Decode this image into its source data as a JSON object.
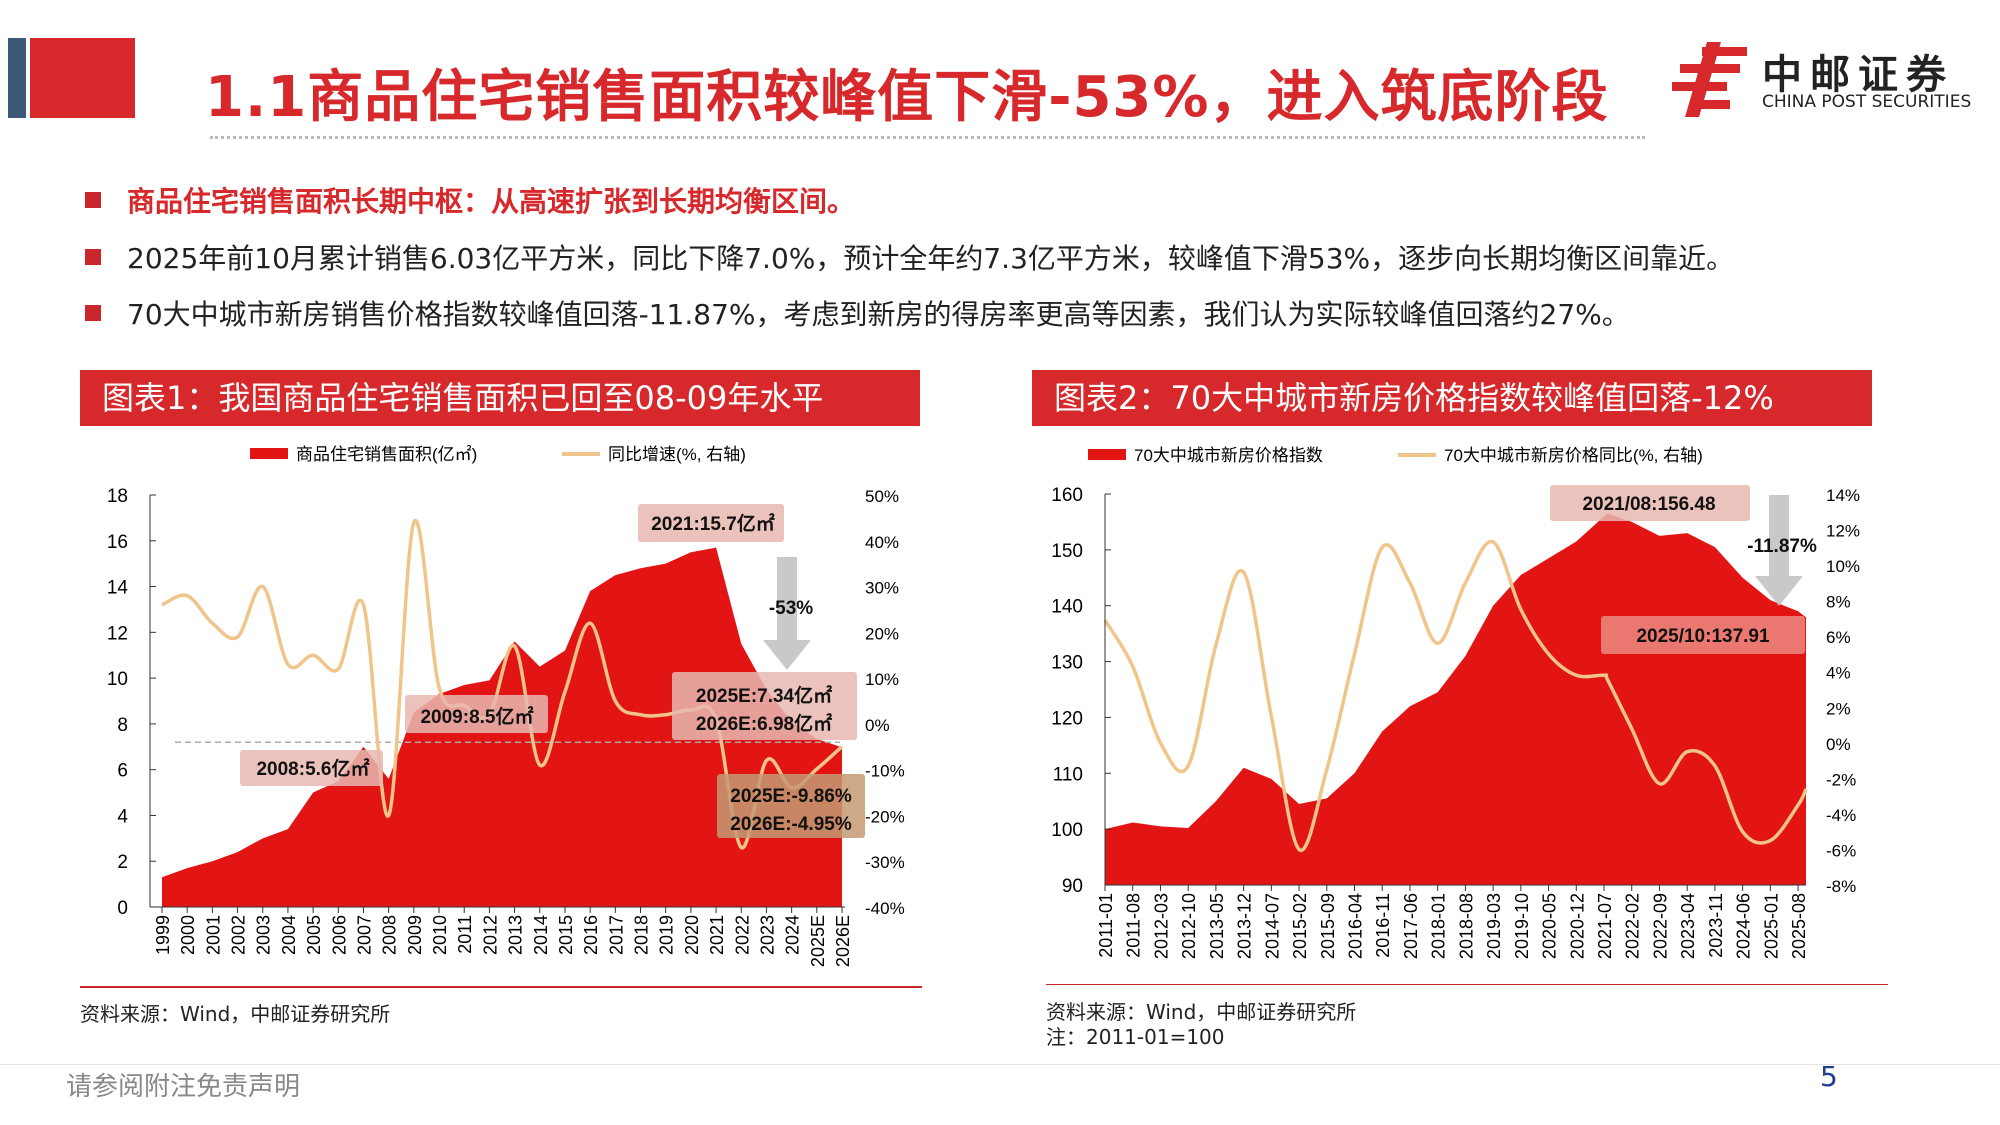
{
  "header": {
    "title": "1.1商品住宅销售面积较峰值下滑-53%，进入筑底阶段",
    "logo_cn": "中邮证券",
    "logo_en": "CHINA POST SECURITIES"
  },
  "bullets": [
    "商品住宅销售面积长期中枢：从高速扩张到长期均衡区间。",
    "2025年前10月累计销售6.03亿平方米，同比下降7.0%，预计全年约7.3亿平方米，较峰值下滑53%，逐步向长期均衡区间靠近。",
    "70大中城市新房销售价格指数较峰值回落-11.87%，考虑到新房的得房率更高等因素，我们认为实际较峰值回落约27%。"
  ],
  "colors": {
    "accent": "#d7282b",
    "area": "#e31414",
    "line": "#f0c48a",
    "arrow": "#c0c0c0"
  },
  "chart_data": [
    {
      "type": "area+line",
      "header": "图表1：我国商品住宅销售面积已回至08-09年水平",
      "legend": [
        "商品住宅销售面积(亿㎡)",
        "同比增速(%, 右轴)"
      ],
      "categories": [
        "1999",
        "2000",
        "2001",
        "2002",
        "2003",
        "2004",
        "2005",
        "2006",
        "2007",
        "2008",
        "2009",
        "2010",
        "2011",
        "2012",
        "2013",
        "2014",
        "2015",
        "2016",
        "2017",
        "2018",
        "2019",
        "2020",
        "2021",
        "2022",
        "2023",
        "2024",
        "2025E",
        "2026E"
      ],
      "series": [
        {
          "name": "商品住宅销售面积(亿㎡)",
          "axis": "left",
          "values": [
            1.3,
            1.7,
            2.0,
            2.4,
            3.0,
            3.4,
            5.0,
            5.5,
            7.0,
            5.6,
            8.5,
            9.3,
            9.7,
            9.9,
            11.6,
            10.5,
            11.2,
            13.8,
            14.5,
            14.8,
            15.0,
            15.5,
            15.7,
            11.5,
            9.5,
            8.1,
            7.34,
            6.98
          ]
        },
        {
          "name": "同比增速(%, 右轴)",
          "axis": "right",
          "values": [
            26,
            28,
            22,
            19,
            30,
            13,
            15,
            12,
            26,
            -20,
            44,
            8,
            4,
            2,
            17,
            -9,
            7,
            22,
            5,
            2,
            2,
            3,
            1,
            -27,
            -8,
            -14,
            -9.86,
            -4.95
          ]
        }
      ],
      "ylim_left": [
        0,
        18
      ],
      "yticks_left": [
        "0",
        "2",
        "4",
        "6",
        "8",
        "10",
        "12",
        "14",
        "16",
        "18"
      ],
      "ylim_right": [
        -40,
        50
      ],
      "yticks_right": [
        "-40%",
        "-30%",
        "-20%",
        "-10%",
        "0%",
        "10%",
        "20%",
        "30%",
        "40%",
        "50%"
      ],
      "reference_line": 7.2,
      "annotations": [
        "2021:15.7亿㎡",
        "-53%",
        "2009:8.5亿㎡",
        "2008:5.6亿㎡",
        "2025E:7.34亿㎡",
        "2026E:6.98亿㎡",
        "2025E:-9.86%",
        "2026E:-4.95%"
      ],
      "source": "资料来源：Wind，中邮证券研究所"
    },
    {
      "type": "area+line",
      "header": "图表2：70大中城市新房价格指数较峰值回落-12%",
      "legend": [
        "70大中城市新房价格指数",
        "70大中城市新房价格同比(%, 右轴)"
      ],
      "x": [
        "2011-01",
        "2011-08",
        "2012-03",
        "2012-10",
        "2013-05",
        "2013-12",
        "2014-07",
        "2015-02",
        "2015-09",
        "2016-04",
        "2016-11",
        "2017-06",
        "2018-01",
        "2018-08",
        "2019-03",
        "2019-10",
        "2020-05",
        "2020-12",
        "2021-07",
        "2021-08",
        "2022-02",
        "2022-09",
        "2023-04",
        "2023-11",
        "2024-06",
        "2025-01",
        "2025-08",
        "2025-10"
      ],
      "xticks": [
        "2011-01",
        "2011-08",
        "2012-03",
        "2012-10",
        "2013-05",
        "2013-12",
        "2014-07",
        "2015-02",
        "2015-09",
        "2016-04",
        "2016-11",
        "2017-06",
        "2018-01",
        "2018-08",
        "2019-03",
        "2019-10",
        "2020-05",
        "2020-12",
        "2021-07",
        "2022-02",
        "2022-09",
        "2023-04",
        "2023-11",
        "2024-06",
        "2025-01",
        "2025-08"
      ],
      "series": [
        {
          "name": "70大中城市新房价格指数",
          "axis": "left",
          "values": [
            100,
            101.2,
            100.5,
            100.2,
            105,
            111,
            109,
            104.5,
            105.5,
            110,
            117.5,
            122,
            124.5,
            131,
            140,
            145.5,
            148.5,
            151.5,
            156,
            156.48,
            155,
            152.5,
            153,
            150.5,
            145,
            141,
            139,
            137.91
          ]
        },
        {
          "name": "70大中城市新房价格同比(%, 右轴)",
          "axis": "right",
          "values": [
            6.9,
            4.3,
            0,
            -1.3,
            5.5,
            9.6,
            1.5,
            -6.0,
            -1.5,
            5,
            11,
            9,
            5.6,
            9,
            11.3,
            7.5,
            5,
            3.8,
            3.8,
            3.5,
            0.8,
            -2.3,
            -0.5,
            -1.3,
            -5,
            -5.5,
            -3.5,
            -2.6
          ]
        }
      ],
      "ylim_left": [
        90,
        160
      ],
      "yticks_left": [
        "90",
        "100",
        "110",
        "120",
        "130",
        "140",
        "150",
        "160"
      ],
      "ylim_right": [
        -8,
        14
      ],
      "yticks_right": [
        "-8%",
        "-6%",
        "-4%",
        "-2%",
        "0%",
        "2%",
        "4%",
        "6%",
        "8%",
        "10%",
        "12%",
        "14%"
      ],
      "annotations": [
        "2021/08:156.48",
        "-11.87%",
        "2025/10:137.91"
      ],
      "source": "资料来源：Wind，中邮证券研究所",
      "note": "注：2011-01=100"
    }
  ],
  "footer": {
    "disclaimer": "请参阅附注免责声明",
    "page": "5"
  }
}
